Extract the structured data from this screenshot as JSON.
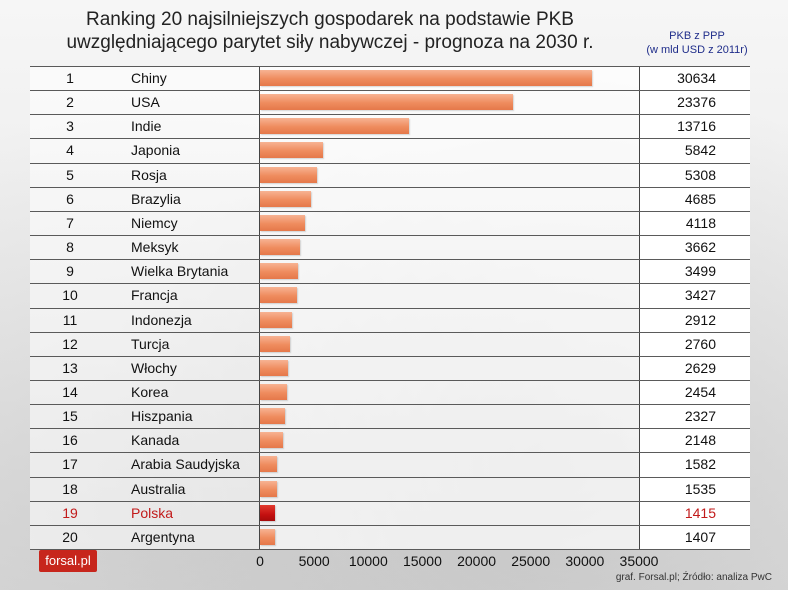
{
  "chart_data": {
    "type": "bar",
    "orientation": "horizontal",
    "title": "Ranking 20 najsilniejszych gospodarek na podstawie PKB uwzględniającego parytet siły nabywczej - prognoza na 2030 r.",
    "unit_label_line1": "PKB z PPP",
    "unit_label_line2": "(w mld USD z 2011r)",
    "xlim": [
      0,
      35000
    ],
    "ticks": [
      "0",
      "5000",
      "10000",
      "15000",
      "20000",
      "25000",
      "30000",
      "35000"
    ],
    "highlight_color": "#c41010",
    "bar_color": "#ef8c5e",
    "rows": [
      {
        "rank": "1",
        "country": "Chiny",
        "value": 30634,
        "label": "30634"
      },
      {
        "rank": "2",
        "country": "USA",
        "value": 23376,
        "label": "23376"
      },
      {
        "rank": "3",
        "country": "Indie",
        "value": 13716,
        "label": "13716"
      },
      {
        "rank": "4",
        "country": "Japonia",
        "value": 5842,
        "label": "5842"
      },
      {
        "rank": "5",
        "country": "Rosja",
        "value": 5308,
        "label": "5308"
      },
      {
        "rank": "6",
        "country": "Brazylia",
        "value": 4685,
        "label": "4685"
      },
      {
        "rank": "7",
        "country": "Niemcy",
        "value": 4118,
        "label": "4118"
      },
      {
        "rank": "8",
        "country": "Meksyk",
        "value": 3662,
        "label": "3662"
      },
      {
        "rank": "9",
        "country": "Wielka Brytania",
        "value": 3499,
        "label": "3499"
      },
      {
        "rank": "10",
        "country": "Francja",
        "value": 3427,
        "label": "3427"
      },
      {
        "rank": "11",
        "country": "Indonezja",
        "value": 2912,
        "label": "2912"
      },
      {
        "rank": "12",
        "country": "Turcja",
        "value": 2760,
        "label": "2760"
      },
      {
        "rank": "13",
        "country": "Włochy",
        "value": 2629,
        "label": "2629"
      },
      {
        "rank": "14",
        "country": "Korea",
        "value": 2454,
        "label": "2454"
      },
      {
        "rank": "15",
        "country": "Hiszpania",
        "value": 2327,
        "label": "2327"
      },
      {
        "rank": "16",
        "country": "Kanada",
        "value": 2148,
        "label": "2148"
      },
      {
        "rank": "17",
        "country": "Arabia Saudyjska",
        "value": 1582,
        "label": "1582"
      },
      {
        "rank": "18",
        "country": "Australia",
        "value": 1535,
        "label": "1535"
      },
      {
        "rank": "19",
        "country": "Polska",
        "value": 1415,
        "label": "1415",
        "highlight": true
      },
      {
        "rank": "20",
        "country": "Argentyna",
        "value": 1407,
        "label": "1407"
      }
    ]
  },
  "logo_text": "forsal.pl",
  "source_text": "graf. Forsal.pl; Źródło: analiza PwC"
}
